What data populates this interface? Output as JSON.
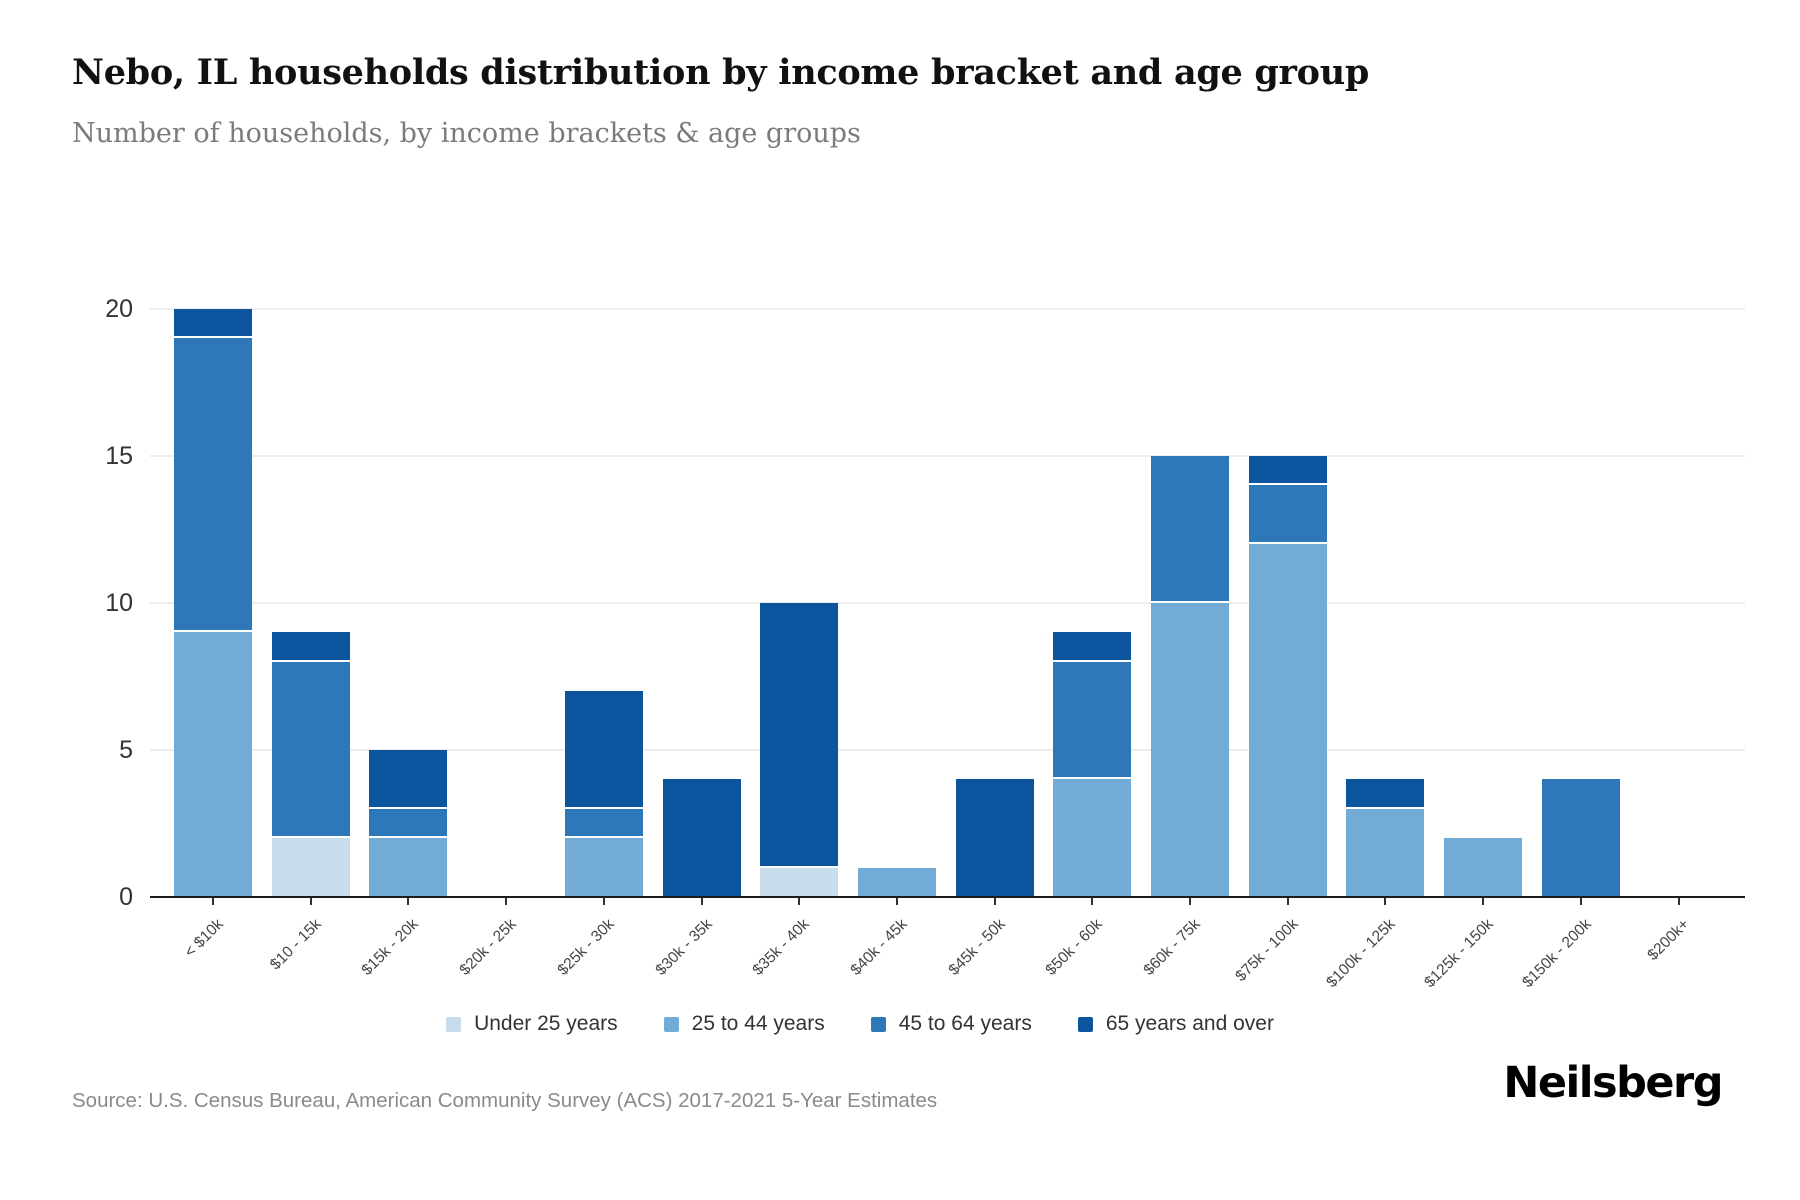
{
  "header": {
    "title": "Nebo, IL households distribution by income bracket and age group",
    "subtitle": "Number of households, by income brackets & age groups"
  },
  "chart_data": {
    "type": "bar",
    "stacked": true,
    "categories": [
      "< $10k",
      "$10 - 15k",
      "$15k - 20k",
      "$20k - 25k",
      "$25k - 30k",
      "$30k - 35k",
      "$35k - 40k",
      "$40k - 45k",
      "$45k - 50k",
      "$50k - 60k",
      "$60k - 75k",
      "$75k - 100k",
      "$100k - 125k",
      "$125k - 150k",
      "$150k - 200k",
      "$200k+"
    ],
    "series": [
      {
        "name": "Under 25 years",
        "color": "#c9dcec",
        "values": [
          0,
          2,
          0,
          0,
          0,
          0,
          1,
          0,
          0,
          0,
          0,
          0,
          0,
          0,
          0,
          0
        ]
      },
      {
        "name": "25 to 44 years",
        "color": "#72abd5",
        "values": [
          9,
          0,
          2,
          0,
          2,
          0,
          0,
          1,
          0,
          4,
          10,
          12,
          3,
          2,
          0,
          0
        ]
      },
      {
        "name": "45 to 64 years",
        "color": "#2e78b9",
        "values": [
          10,
          6,
          1,
          0,
          1,
          0,
          0,
          0,
          0,
          4,
          5,
          2,
          0,
          0,
          4,
          0
        ]
      },
      {
        "name": "65 years and over",
        "color": "#0c549e",
        "values": [
          1,
          1,
          2,
          0,
          4,
          4,
          9,
          0,
          4,
          1,
          0,
          1,
          1,
          0,
          0,
          0
        ]
      }
    ],
    "totals": [
      20,
      9,
      5,
      0,
      7,
      4,
      10,
      1,
      4,
      9,
      15,
      15,
      4,
      2,
      4,
      0
    ],
    "title": "Nebo, IL households distribution by income bracket and age group",
    "xlabel": "",
    "ylabel": "Number of households",
    "ylim": [
      0,
      20
    ],
    "yticks": [
      0,
      5,
      10,
      15,
      20
    ],
    "grid": "horizontal",
    "legend_position": "bottom"
  },
  "footer": {
    "source": "Source: U.S. Census Bureau, American Community Survey (ACS) 2017-2021 5-Year Estimates",
    "brand": "Neilsberg"
  }
}
